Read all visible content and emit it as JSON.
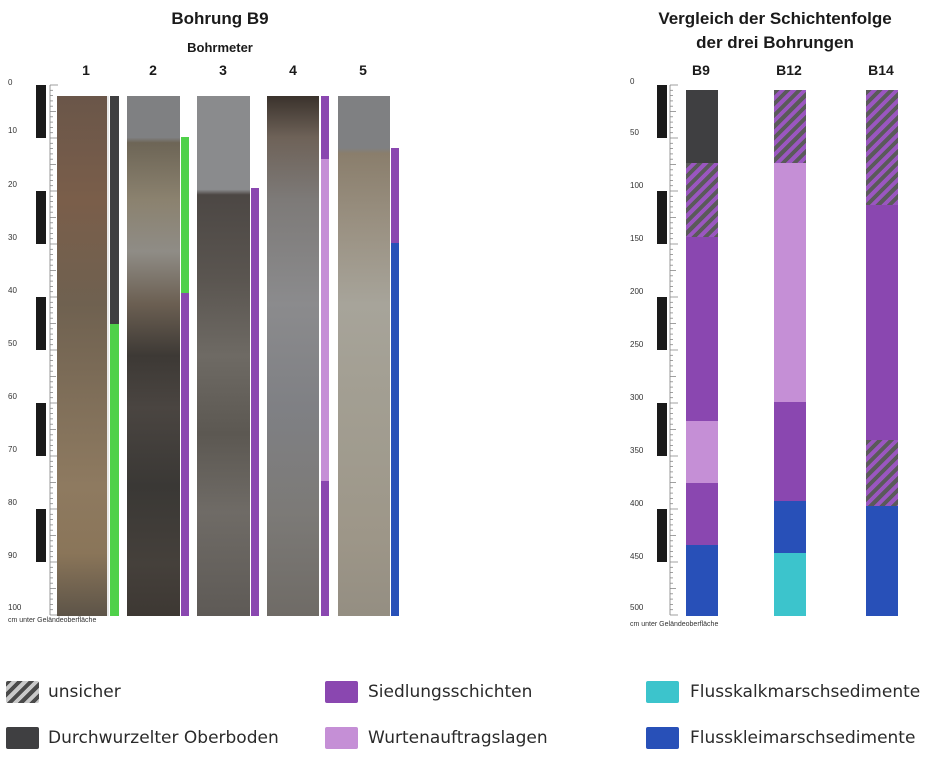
{
  "left": {
    "title": "Bohrung B9",
    "subtitle": "Bohrmeter",
    "columns": [
      "1",
      "2",
      "3",
      "4",
      "5"
    ],
    "ticks": [
      "0",
      "10",
      "20",
      "30",
      "40",
      "50",
      "60",
      "70",
      "80",
      "90",
      "100"
    ],
    "axis_note": "cm unter Geländeoberfläche"
  },
  "right": {
    "title_line1": "Vergleich der Schichtenfolge",
    "title_line2": "der drei Bohrungen",
    "columns": [
      "B9",
      "B12",
      "B14"
    ],
    "ticks": [
      "0",
      "50",
      "100",
      "150",
      "200",
      "250",
      "300",
      "350",
      "400",
      "450",
      "500"
    ],
    "axis_note": "cm unter Geländeoberfläche"
  },
  "legend": {
    "unsicher": "unsicher",
    "oberboden": "Durchwurzelter Oberboden",
    "siedlung": "Siedlungsschichten",
    "wurten": "Wurtenauftragslagen",
    "flusskalk": "Flusskalkmarschsedimente",
    "flussklei": "Flusskleimarschsedimente"
  },
  "colors": {
    "oberboden": "#3f3f41",
    "siedlung": "#8a47b0",
    "wurten": "#c58fd6",
    "flusskalk": "#3cc4cc",
    "flussklei": "#2850b8",
    "green": "#4fd14a"
  }
}
